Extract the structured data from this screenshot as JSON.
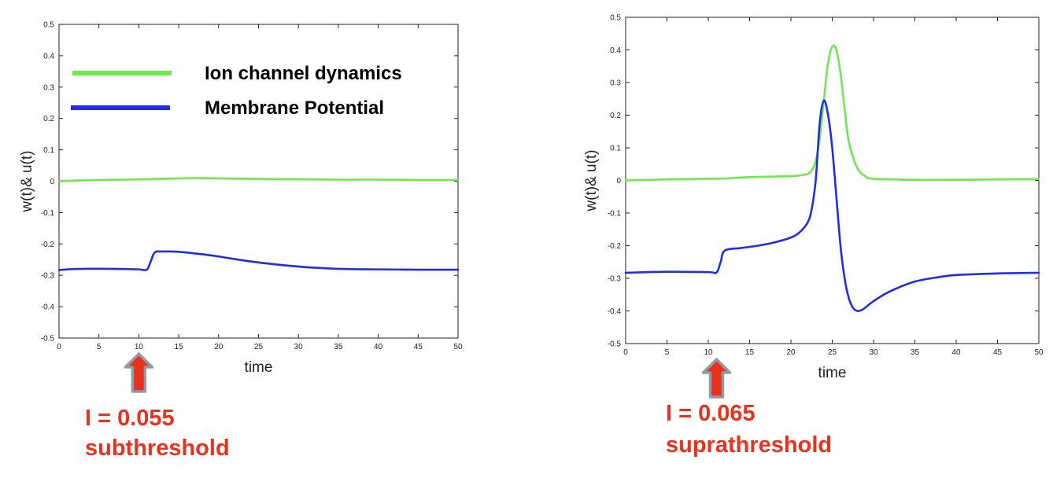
{
  "colors": {
    "ion": "#6ee84f",
    "membrane": "#1f2fe0",
    "annotation": "#e8321f",
    "arrow_fill": "#e8321f",
    "arrow_stroke": "#8c9ea3"
  },
  "legend": {
    "placement": "top-left",
    "entries": [
      {
        "label": "Ion channel dynamics",
        "series": "ion"
      },
      {
        "label": "Membrane Potential",
        "series": "membrane"
      }
    ]
  },
  "annotations": [
    {
      "line1": "I = 0.055",
      "line2": "subthreshold",
      "x": 10
    },
    {
      "line1": "I = 0.065",
      "line2": "suprathreshold",
      "x": 11
    }
  ],
  "chart_data": [
    {
      "type": "line",
      "xlabel": "time",
      "ylabel": "w(t)& u(t)",
      "xlim": [
        0,
        50
      ],
      "ylim": [
        -0.5,
        0.5
      ],
      "xticks": [
        "0",
        "5",
        "10",
        "15",
        "20",
        "25",
        "30",
        "35",
        "40",
        "45",
        "50"
      ],
      "yticks": [
        "0.5",
        "0.4",
        "0.3",
        "0.2",
        "0.1",
        "0",
        "-0.1",
        "-0.2",
        "-0.3",
        "-0.4",
        "-0.5"
      ],
      "grid": false,
      "series": [
        {
          "key": "ion",
          "x": [
            0,
            2,
            5,
            8,
            11,
            12,
            14,
            17,
            20,
            25,
            30,
            35,
            40,
            45,
            50
          ],
          "y": [
            0,
            0.002,
            0.004,
            0.005,
            0.006,
            0.007,
            0.008,
            0.01,
            0.009,
            0.007,
            0.006,
            0.005,
            0.005,
            0.004,
            0.004
          ]
        },
        {
          "key": "membrane",
          "x": [
            0,
            2,
            5,
            8,
            10,
            11,
            11.5,
            12,
            13,
            15,
            18,
            20,
            23,
            26,
            30,
            33,
            36,
            40,
            45,
            50
          ],
          "y": [
            -0.283,
            -0.28,
            -0.279,
            -0.28,
            -0.281,
            -0.282,
            -0.255,
            -0.227,
            -0.224,
            -0.225,
            -0.233,
            -0.24,
            -0.252,
            -0.262,
            -0.272,
            -0.277,
            -0.28,
            -0.281,
            -0.282,
            -0.282
          ]
        }
      ]
    },
    {
      "type": "line",
      "xlabel": "time",
      "ylabel": "w(t)& u(t)",
      "xlim": [
        0,
        50
      ],
      "ylim": [
        -0.5,
        0.5
      ],
      "xticks": [
        "0",
        "5",
        "10",
        "15",
        "20",
        "25",
        "30",
        "35",
        "40",
        "45",
        "50"
      ],
      "yticks": [
        "0.5",
        "0.4",
        "0.3",
        "0.2",
        "0.1",
        "0",
        "-0.1",
        "-0.2",
        "-0.3",
        "-0.4",
        "-0.5"
      ],
      "grid": false,
      "series": [
        {
          "key": "ion",
          "x": [
            0,
            5,
            10,
            11,
            12,
            15,
            18,
            20,
            21,
            22,
            22.5,
            23,
            23.5,
            24,
            24.5,
            25,
            25.5,
            26,
            26.5,
            27,
            28,
            29,
            30,
            35,
            40,
            45,
            50
          ],
          "y": [
            0,
            0.003,
            0.005,
            0.005,
            0.006,
            0.01,
            0.012,
            0.013,
            0.015,
            0.02,
            0.03,
            0.06,
            0.13,
            0.25,
            0.36,
            0.41,
            0.4,
            0.33,
            0.22,
            0.12,
            0.04,
            0.013,
            0.005,
            0.002,
            0.002,
            0.003,
            0.004
          ]
        },
        {
          "key": "membrane",
          "x": [
            0,
            5,
            10,
            11,
            11.5,
            12,
            14,
            16,
            18,
            20,
            21,
            22,
            22.5,
            23,
            23.5,
            24,
            24.5,
            25,
            25.5,
            26,
            26.5,
            27,
            27.5,
            28,
            28.5,
            29,
            30,
            32,
            35,
            38,
            40,
            45,
            50
          ],
          "y": [
            -0.283,
            -0.28,
            -0.281,
            -0.282,
            -0.25,
            -0.215,
            -0.207,
            -0.2,
            -0.19,
            -0.175,
            -0.16,
            -0.13,
            -0.09,
            0,
            0.18,
            0.245,
            0.2,
            0.1,
            -0.05,
            -0.2,
            -0.3,
            -0.36,
            -0.39,
            -0.4,
            -0.398,
            -0.39,
            -0.37,
            -0.34,
            -0.31,
            -0.296,
            -0.29,
            -0.285,
            -0.283
          ]
        }
      ]
    }
  ]
}
